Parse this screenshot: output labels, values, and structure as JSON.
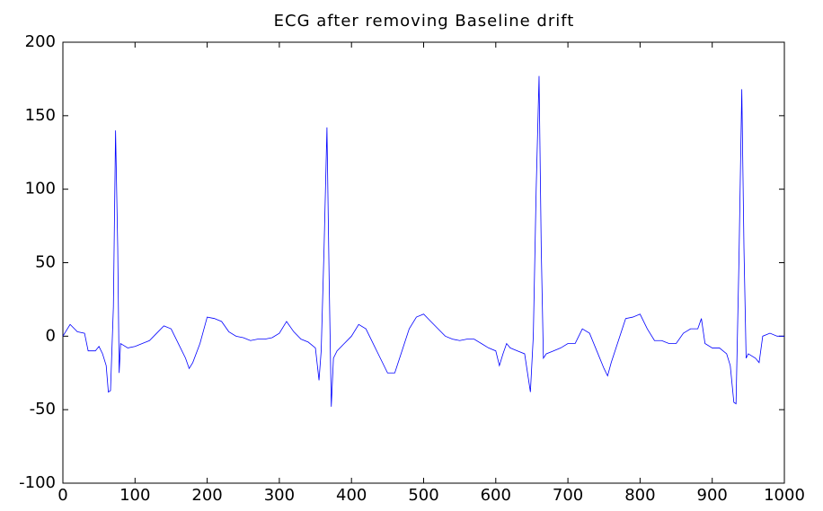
{
  "chart_data": {
    "type": "line",
    "title": "ECG after removing Baseline drift",
    "x": [
      0,
      10,
      20,
      30,
      35,
      45,
      50,
      55,
      60,
      63,
      66,
      70,
      73,
      76,
      78,
      80,
      90,
      100,
      110,
      120,
      130,
      140,
      150,
      160,
      170,
      175,
      180,
      190,
      200,
      210,
      220,
      230,
      240,
      250,
      260,
      270,
      280,
      290,
      300,
      310,
      320,
      330,
      340,
      350,
      355,
      358,
      362,
      366,
      369,
      372,
      375,
      380,
      390,
      400,
      410,
      420,
      430,
      440,
      450,
      460,
      470,
      480,
      490,
      500,
      510,
      520,
      530,
      540,
      550,
      560,
      570,
      580,
      590,
      600,
      605,
      610,
      615,
      620,
      630,
      640,
      648,
      652,
      656,
      660,
      663,
      666,
      670,
      680,
      690,
      700,
      710,
      720,
      730,
      740,
      750,
      755,
      760,
      770,
      780,
      790,
      800,
      810,
      820,
      830,
      840,
      850,
      860,
      870,
      880,
      885,
      890,
      900,
      910,
      920,
      925,
      930,
      933,
      937,
      941,
      944,
      947,
      950,
      960,
      965,
      970,
      980,
      990,
      1000
    ],
    "series": [
      {
        "name": "ECG",
        "color": "#0000ff",
        "values": [
          0,
          8,
          3,
          2,
          -10,
          -10,
          -7,
          -12,
          -20,
          -38,
          -37,
          20,
          140,
          60,
          -25,
          -5,
          -8,
          -7,
          -5,
          -3,
          2,
          7,
          5,
          -5,
          -15,
          -22,
          -18,
          -5,
          13,
          12,
          10,
          3,
          0,
          -1,
          -3,
          -2,
          -2,
          -1,
          2,
          10,
          3,
          -2,
          -4,
          -8,
          -30,
          -10,
          60,
          142,
          40,
          -48,
          -15,
          -10,
          -5,
          0,
          8,
          5,
          -5,
          -15,
          -25,
          -25,
          -10,
          5,
          13,
          15,
          10,
          5,
          0,
          -2,
          -3,
          -2,
          -2,
          -5,
          -8,
          -10,
          -20,
          -12,
          -5,
          -8,
          -10,
          -12,
          -38,
          0,
          100,
          177,
          60,
          -15,
          -12,
          -10,
          -8,
          -5,
          -5,
          5,
          2,
          -10,
          -22,
          -27,
          -18,
          -3,
          12,
          13,
          15,
          5,
          -3,
          -3,
          -5,
          -5,
          2,
          5,
          5,
          12,
          -5,
          -8,
          -8,
          -12,
          -20,
          -45,
          -46,
          50,
          168,
          60,
          -15,
          -12,
          -15,
          -18,
          0,
          2,
          0,
          0
        ]
      }
    ],
    "xlim": [
      0,
      1000
    ],
    "xticks": [
      0,
      100,
      200,
      300,
      400,
      500,
      600,
      700,
      800,
      900,
      1000
    ],
    "ylim": [
      -100,
      200
    ],
    "yticks": [
      -100,
      -50,
      0,
      50,
      100,
      150,
      200
    ]
  }
}
